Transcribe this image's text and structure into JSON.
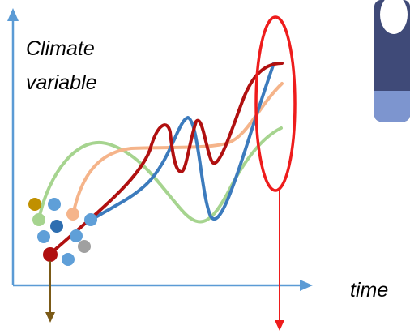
{
  "labels": {
    "y_line1": "Climate",
    "y_line2": "variable",
    "x": "time"
  },
  "colors": {
    "axis": "#5b9bd5",
    "blue": "#3c7bbd",
    "red": "#b01010",
    "green": "#a6d48f",
    "orange": "#f5b48a",
    "highlight": "#ee1c1c",
    "start_arrow": "#7b5a17",
    "grey": "#a0a0a0",
    "gold": "#c09000",
    "light_blue": "#5f9fd8",
    "dark_blue": "#2e6eb0"
  }
}
